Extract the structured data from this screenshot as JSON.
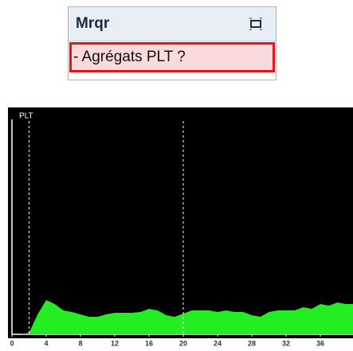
{
  "panel": {
    "title": "Mrqr",
    "item": "- Agrégats PLT ?"
  },
  "chart_data": {
    "type": "area",
    "title": "PLT",
    "color": "#22ee22",
    "x": [
      0,
      1,
      2,
      3,
      4,
      5,
      6,
      7,
      8,
      9,
      10,
      11,
      12,
      13,
      14,
      15,
      16,
      17,
      18,
      19,
      20,
      21,
      22,
      23,
      24,
      25,
      26,
      27,
      28,
      29,
      30,
      31,
      32,
      33,
      34,
      35,
      36,
      37,
      38,
      39,
      40
    ],
    "values": [
      0,
      0,
      2,
      25,
      43,
      38,
      30,
      28,
      25,
      22,
      22,
      25,
      27,
      27,
      27,
      28,
      32,
      30,
      24,
      22,
      26,
      30,
      30,
      30,
      28,
      30,
      28,
      28,
      24,
      22,
      28,
      30,
      30,
      30,
      34,
      32,
      38,
      36,
      40,
      38,
      38
    ],
    "xlim": [
      0,
      40
    ],
    "ylim": [
      0,
      270
    ],
    "xticks": [
      0,
      4,
      8,
      12,
      16,
      20,
      24,
      28,
      32,
      36
    ],
    "thresholds": [
      2,
      20
    ]
  }
}
